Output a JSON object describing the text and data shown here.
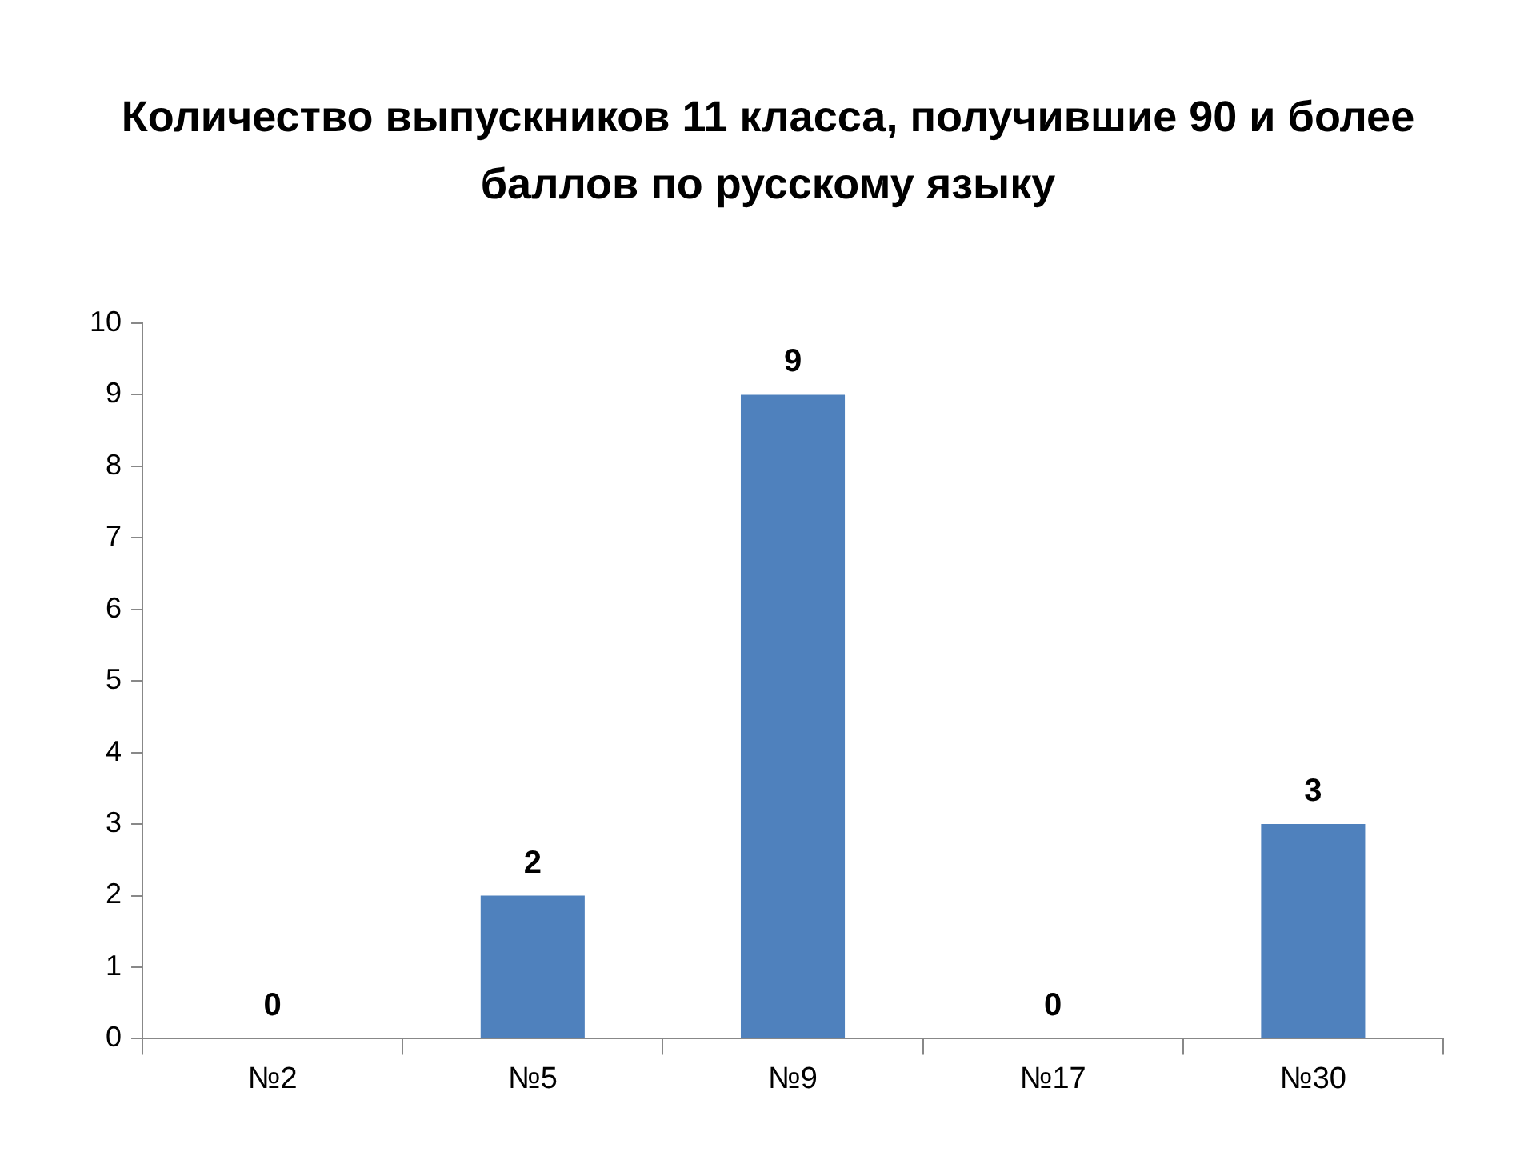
{
  "chart_data": {
    "type": "bar",
    "title": "Количество выпускников 11 класса, получившие 90 и более баллов по русскому языку",
    "categories": [
      "№2",
      "№5",
      "№9",
      "№17",
      "№30"
    ],
    "values": [
      0,
      2,
      9,
      0,
      3
    ],
    "color": "#4f81bd",
    "ylim": [
      0,
      10
    ],
    "yticks": [
      0,
      1,
      2,
      3,
      4,
      5,
      6,
      7,
      8,
      9,
      10
    ],
    "grid": false,
    "legend": false,
    "data_labels": true
  }
}
